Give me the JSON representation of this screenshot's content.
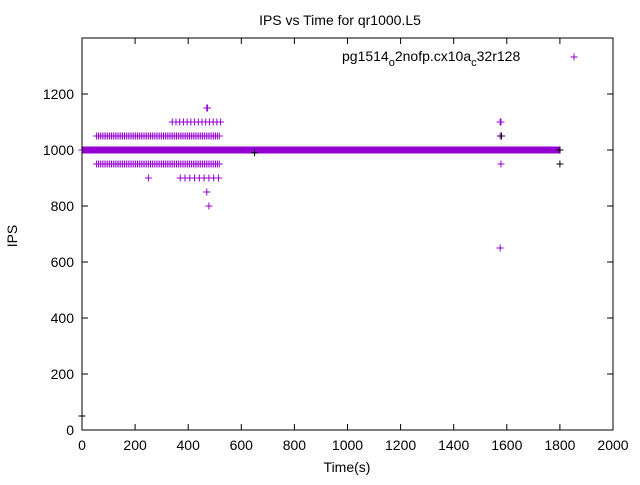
{
  "chart_data": {
    "type": "scatter",
    "title": "IPS vs Time for qr1000.L5",
    "xlabel": "Time(s)",
    "ylabel": "IPS",
    "xlim": [
      0,
      2000
    ],
    "ylim": [
      0,
      1400
    ],
    "xticks": [
      0,
      200,
      400,
      600,
      800,
      1000,
      1200,
      1400,
      1600,
      1800,
      2000
    ],
    "yticks": [
      0,
      200,
      400,
      600,
      800,
      1000,
      1200
    ],
    "grid": false,
    "legend": {
      "position": "top-right",
      "label_parts": [
        "pg1514",
        "o",
        "2nofp.cx10a",
        "c",
        "32r128"
      ]
    },
    "series": [
      {
        "name": "pg1514_o2nofp.cx10a_c32r128",
        "color": "#9400d3",
        "marker": "+",
        "runs": [
          {
            "y": 1000,
            "x_from": 0,
            "x_to": 1800,
            "step": 2
          },
          {
            "y": 1050,
            "x_from": 55,
            "x_to": 520,
            "step": 7
          },
          {
            "y": 950,
            "x_from": 55,
            "x_to": 520,
            "step": 7
          },
          {
            "y": 1100,
            "x_from": 340,
            "x_to": 525,
            "step": 14
          },
          {
            "y": 900,
            "x_from": 370,
            "x_to": 525,
            "step": 18
          }
        ],
        "points": [
          [
            470,
            1150
          ],
          [
            473,
            1150
          ],
          [
            250,
            900
          ],
          [
            470,
            850
          ],
          [
            478,
            800
          ],
          [
            1575,
            1100
          ],
          [
            1578,
            1100
          ],
          [
            1575,
            1050
          ],
          [
            1578,
            950
          ],
          [
            1575,
            650
          ],
          [
            1575,
            1000
          ]
        ]
      },
      {
        "name": "",
        "color": "#000000",
        "marker": "+",
        "points": [
          [
            0,
            50
          ],
          [
            1800,
            950
          ],
          [
            1580,
            1050
          ],
          [
            650,
            990
          ],
          [
            1800,
            1000
          ]
        ]
      }
    ]
  }
}
